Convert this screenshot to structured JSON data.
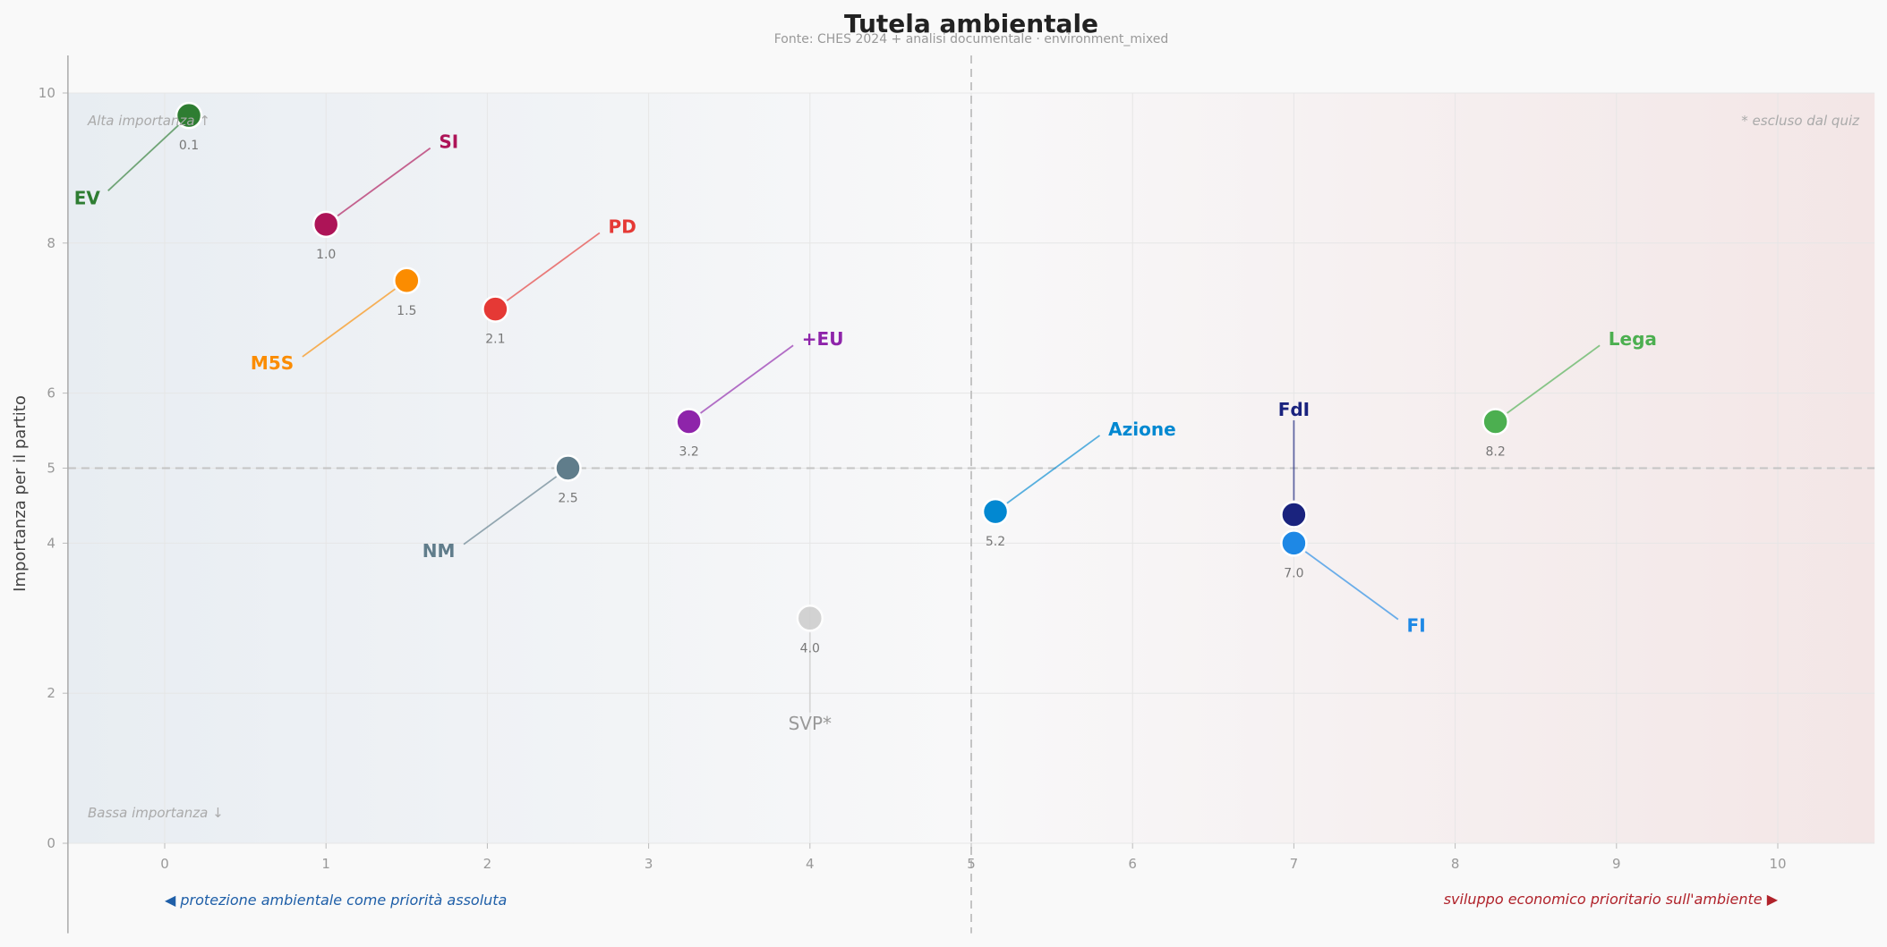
{
  "chart_data": {
    "type": "scatter",
    "title": "Tutela ambientale",
    "subtitle": "Fonte: CHES 2024 + analisi documentale  ·  environment_mixed",
    "xlabel": "",
    "ylabel": "Importanza per il partito",
    "xlim": [
      -0.6,
      10.6
    ],
    "ylim": [
      -1.2,
      10.5
    ],
    "x_ticks": [
      "0",
      "1",
      "2",
      "3",
      "4",
      "5",
      "6",
      "7",
      "8",
      "9",
      "10"
    ],
    "y_ticks": [
      "0",
      "2",
      "4",
      "5",
      "6",
      "8",
      "10"
    ],
    "grid": true,
    "reference_lines": {
      "x": 5,
      "y": 5
    },
    "annotations": {
      "top_left": "Alta importanza ↑",
      "bottom_left": "Bassa importanza ↓",
      "top_right": "* escluso dal quiz",
      "left_pole": "◀  protezione ambientale come priorità assoluta",
      "right_pole": "sviluppo economico prioritario sull'ambiente  ▶"
    },
    "colors": {
      "left_pole": "#1f5fa8",
      "right_pole": "#b0222a",
      "background_left": "#e8edf2",
      "background_right": "#f3e6e6"
    },
    "points": [
      {
        "party": "EV",
        "x": 0.15,
        "y": 9.7,
        "value_label": "0.1",
        "color": "#2e7d32",
        "label_dx": -0.55,
        "label_dy": -1.1
      },
      {
        "party": "SI",
        "x": 1.0,
        "y": 8.25,
        "value_label": "1.0",
        "color": "#ad1457",
        "label_dx": 0.7,
        "label_dy": 1.1
      },
      {
        "party": "M5S",
        "x": 1.5,
        "y": 7.5,
        "value_label": "1.5",
        "color": "#fb8c00",
        "label_dx": -0.7,
        "label_dy": -1.1
      },
      {
        "party": "PD",
        "x": 2.05,
        "y": 7.12,
        "value_label": "2.1",
        "color": "#e53935",
        "label_dx": 0.7,
        "label_dy": 1.1
      },
      {
        "party": "+EU",
        "x": 3.25,
        "y": 5.62,
        "value_label": "3.2",
        "color": "#8e24aa",
        "label_dx": 0.7,
        "label_dy": 1.1
      },
      {
        "party": "NM",
        "x": 2.5,
        "y": 5.0,
        "value_label": "2.5",
        "color": "#607d8b",
        "label_dx": -0.7,
        "label_dy": -1.1
      },
      {
        "party": "SVP*",
        "x": 4.0,
        "y": 3.0,
        "value_label": "4.0",
        "color": "#cccccc",
        "label_dx": 0.0,
        "label_dy": -1.4,
        "excluded": true
      },
      {
        "party": "Azione",
        "x": 5.15,
        "y": 4.42,
        "value_label": "5.2",
        "color": "#0288d1",
        "label_dx": 0.7,
        "label_dy": 1.1
      },
      {
        "party": "FdI",
        "x": 7.0,
        "y": 4.38,
        "value_label": "",
        "color": "#1a237e",
        "label_dx": 0.0,
        "label_dy": 1.4
      },
      {
        "party": "FI",
        "x": 7.0,
        "y": 4.0,
        "value_label": "7.0",
        "color": "#1e88e5",
        "label_dx": 0.7,
        "label_dy": -1.1
      },
      {
        "party": "Lega",
        "x": 8.25,
        "y": 5.62,
        "value_label": "8.2",
        "color": "#4caf50",
        "label_dx": 0.7,
        "label_dy": 1.1
      }
    ]
  }
}
